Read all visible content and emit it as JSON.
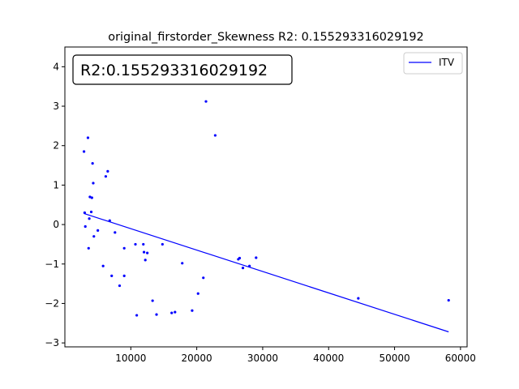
{
  "chart_data": {
    "type": "scatter",
    "title": "original_firstorder_Skewness R2: 0.155293316029192",
    "annotation": "R2:0.155293316029192",
    "xlabel": "",
    "ylabel": "",
    "xlim": [
      0,
      61000
    ],
    "ylim": [
      -3.1,
      4.5
    ],
    "xticks": [
      10000,
      20000,
      30000,
      40000,
      50000,
      60000
    ],
    "yticks": [
      -3,
      -2,
      -1,
      0,
      1,
      2,
      3,
      4
    ],
    "grid": false,
    "legend": {
      "position": "top-right",
      "entries": [
        "ITV"
      ]
    },
    "points_color": "#0000ff",
    "line_color": "#0000ff",
    "points": [
      [
        2900,
        1.85
      ],
      [
        3000,
        0.3
      ],
      [
        3100,
        -0.05
      ],
      [
        3500,
        2.2
      ],
      [
        3600,
        -0.6
      ],
      [
        3700,
        0.15
      ],
      [
        3800,
        0.7
      ],
      [
        4000,
        0.32
      ],
      [
        4100,
        0.68
      ],
      [
        4200,
        1.55
      ],
      [
        4300,
        1.05
      ],
      [
        4400,
        -0.3
      ],
      [
        5000,
        -0.15
      ],
      [
        5800,
        -1.05
      ],
      [
        6200,
        1.22
      ],
      [
        6500,
        1.35
      ],
      [
        6800,
        0.1
      ],
      [
        7100,
        -1.3
      ],
      [
        7600,
        -0.2
      ],
      [
        8300,
        -1.55
      ],
      [
        9000,
        -0.6
      ],
      [
        9000,
        -1.3
      ],
      [
        10700,
        -0.5
      ],
      [
        10900,
        -2.3
      ],
      [
        11900,
        -0.5
      ],
      [
        12000,
        -0.7
      ],
      [
        12200,
        -0.9
      ],
      [
        12500,
        -0.72
      ],
      [
        13300,
        -1.93
      ],
      [
        13900,
        -2.28
      ],
      [
        14800,
        -0.5
      ],
      [
        16200,
        -2.24
      ],
      [
        16700,
        -2.22
      ],
      [
        17800,
        -0.98
      ],
      [
        19300,
        -2.18
      ],
      [
        20200,
        -1.75
      ],
      [
        21000,
        -1.35
      ],
      [
        21400,
        3.12
      ],
      [
        22800,
        2.26
      ],
      [
        26300,
        -0.88
      ],
      [
        26500,
        -0.85
      ],
      [
        27000,
        -1.1
      ],
      [
        28000,
        -1.05
      ],
      [
        29000,
        -0.84
      ],
      [
        44500,
        -1.87
      ],
      [
        58200,
        -1.92
      ]
    ],
    "regression_line": {
      "x": [
        2900,
        58200
      ],
      "y": [
        0.28,
        -2.72
      ]
    }
  }
}
